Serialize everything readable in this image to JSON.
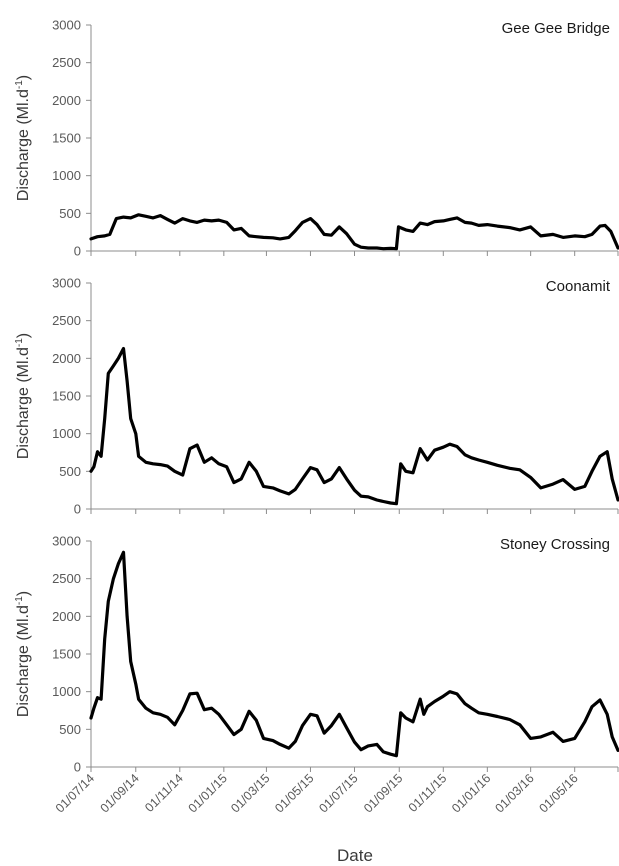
{
  "chart_data": [
    {
      "type": "line",
      "title": "Gee Gee Bridge",
      "ylabel": "Discharge (Ml.d",
      "ylabel_sup": "-1",
      "ylabel_close": ")",
      "ylim": [
        0,
        3000
      ],
      "yticks": [
        0,
        500,
        1000,
        1500,
        2000,
        2500,
        3000
      ],
      "series": [
        {
          "x": [
            "2014-07-01",
            "2014-07-10",
            "2014-07-20",
            "2014-07-27",
            "2014-08-05",
            "2014-08-15",
            "2014-08-25",
            "2014-09-05",
            "2014-09-15",
            "2014-09-25",
            "2014-10-05",
            "2014-10-15",
            "2014-10-25",
            "2014-11-05",
            "2014-11-15",
            "2014-11-25",
            "2014-12-05",
            "2014-12-15",
            "2014-12-25",
            "2015-01-05",
            "2015-01-15",
            "2015-01-25",
            "2015-02-05",
            "2015-02-15",
            "2015-02-25",
            "2015-03-10",
            "2015-03-20",
            "2015-04-01",
            "2015-04-10",
            "2015-04-20",
            "2015-05-01",
            "2015-05-10",
            "2015-05-20",
            "2015-05-30",
            "2015-06-10",
            "2015-06-20",
            "2015-07-01",
            "2015-07-10",
            "2015-07-20",
            "2015-08-01",
            "2015-08-10",
            "2015-08-20",
            "2015-08-28",
            "2015-08-31",
            "2015-09-10",
            "2015-09-20",
            "2015-09-30",
            "2015-10-10",
            "2015-10-20",
            "2015-11-01",
            "2015-11-10",
            "2015-11-20",
            "2015-12-01",
            "2015-12-10",
            "2015-12-20",
            "2016-01-01",
            "2016-01-15",
            "2016-02-01",
            "2016-02-15",
            "2016-03-01",
            "2016-03-15",
            "2016-04-01",
            "2016-04-15",
            "2016-05-01",
            "2016-05-15",
            "2016-05-25",
            "2016-06-05",
            "2016-06-12",
            "2016-06-20",
            "2016-06-30"
          ],
          "y": [
            160,
            190,
            200,
            220,
            430,
            450,
            440,
            480,
            460,
            440,
            470,
            420,
            370,
            430,
            400,
            380,
            410,
            400,
            410,
            380,
            280,
            300,
            200,
            190,
            180,
            175,
            160,
            180,
            270,
            380,
            430,
            350,
            220,
            210,
            320,
            230,
            90,
            50,
            40,
            40,
            30,
            35,
            30,
            320,
            280,
            260,
            370,
            350,
            390,
            400,
            420,
            440,
            380,
            370,
            340,
            350,
            330,
            310,
            280,
            320,
            200,
            220,
            180,
            200,
            190,
            220,
            330,
            340,
            260,
            40
          ]
        }
      ]
    },
    {
      "type": "line",
      "title": "Coonamit",
      "ylabel": "Discharge (Ml.d",
      "ylabel_sup": "-1",
      "ylabel_close": ")",
      "ylim": [
        0,
        3000
      ],
      "yticks": [
        0,
        500,
        1000,
        1500,
        2000,
        2500,
        3000
      ],
      "series": [
        {
          "x": [
            "2014-07-01",
            "2014-07-05",
            "2014-07-10",
            "2014-07-15",
            "2014-07-20",
            "2014-07-25",
            "2014-08-01",
            "2014-08-08",
            "2014-08-15",
            "2014-08-20",
            "2014-08-25",
            "2014-09-01",
            "2014-09-05",
            "2014-09-15",
            "2014-09-25",
            "2014-10-05",
            "2014-10-15",
            "2014-10-25",
            "2014-11-05",
            "2014-11-15",
            "2014-11-25",
            "2014-12-05",
            "2014-12-15",
            "2014-12-25",
            "2015-01-05",
            "2015-01-15",
            "2015-01-25",
            "2015-02-05",
            "2015-02-15",
            "2015-02-25",
            "2015-03-10",
            "2015-03-20",
            "2015-04-01",
            "2015-04-10",
            "2015-04-20",
            "2015-05-01",
            "2015-05-10",
            "2015-05-20",
            "2015-05-30",
            "2015-06-10",
            "2015-06-20",
            "2015-07-01",
            "2015-07-10",
            "2015-07-20",
            "2015-08-01",
            "2015-08-10",
            "2015-08-20",
            "2015-08-28",
            "2015-09-03",
            "2015-09-10",
            "2015-09-20",
            "2015-09-30",
            "2015-10-10",
            "2015-10-20",
            "2015-11-01",
            "2015-11-10",
            "2015-11-20",
            "2015-12-01",
            "2015-12-10",
            "2015-12-20",
            "2016-01-01",
            "2016-01-15",
            "2016-02-01",
            "2016-02-15",
            "2016-03-01",
            "2016-03-15",
            "2016-04-01",
            "2016-04-15",
            "2016-05-01",
            "2016-05-15",
            "2016-05-25",
            "2016-06-05",
            "2016-06-15",
            "2016-06-22",
            "2016-06-30"
          ],
          "y": [
            500,
            560,
            760,
            700,
            1200,
            1800,
            1900,
            2000,
            2130,
            1700,
            1200,
            1000,
            700,
            620,
            600,
            590,
            570,
            500,
            450,
            800,
            850,
            620,
            680,
            600,
            560,
            350,
            400,
            620,
            500,
            300,
            280,
            240,
            200,
            260,
            400,
            550,
            520,
            350,
            400,
            550,
            400,
            250,
            170,
            160,
            120,
            100,
            80,
            70,
            600,
            500,
            480,
            800,
            650,
            780,
            820,
            860,
            830,
            720,
            680,
            650,
            620,
            580,
            540,
            520,
            420,
            280,
            330,
            390,
            260,
            300,
            500,
            700,
            760,
            400,
            120
          ]
        }
      ]
    },
    {
      "type": "line",
      "title": "Stoney Crossing",
      "ylabel": "Discharge (Ml.d",
      "ylabel_sup": "-1",
      "ylabel_close": ")",
      "xlabel": "Date",
      "ylim": [
        0,
        3000
      ],
      "yticks": [
        0,
        500,
        1000,
        1500,
        2000,
        2500,
        3000
      ],
      "xticks": [
        "01/07/14",
        "01/09/14",
        "01/11/14",
        "01/01/15",
        "01/03/15",
        "01/05/15",
        "01/07/15",
        "01/09/15",
        "01/11/15",
        "01/01/16",
        "01/03/16",
        "01/05/16"
      ],
      "xtick_dates": [
        "2014-07-01",
        "2014-09-01",
        "2014-11-01",
        "2015-01-01",
        "2015-03-01",
        "2015-05-01",
        "2015-07-01",
        "2015-09-01",
        "2015-11-01",
        "2016-01-01",
        "2016-03-01",
        "2016-05-01"
      ],
      "xlim": [
        "2014-07-01",
        "2016-06-30"
      ],
      "series": [
        {
          "x": [
            "2014-07-01",
            "2014-07-05",
            "2014-07-10",
            "2014-07-15",
            "2014-07-20",
            "2014-07-25",
            "2014-08-01",
            "2014-08-08",
            "2014-08-15",
            "2014-08-20",
            "2014-08-25",
            "2014-09-01",
            "2014-09-05",
            "2014-09-15",
            "2014-09-25",
            "2014-10-05",
            "2014-10-15",
            "2014-10-25",
            "2014-11-05",
            "2014-11-15",
            "2014-11-25",
            "2014-12-05",
            "2014-12-15",
            "2014-12-25",
            "2015-01-05",
            "2015-01-15",
            "2015-01-25",
            "2015-02-05",
            "2015-02-15",
            "2015-02-25",
            "2015-03-10",
            "2015-03-20",
            "2015-04-01",
            "2015-04-10",
            "2015-04-20",
            "2015-05-01",
            "2015-05-10",
            "2015-05-20",
            "2015-05-30",
            "2015-06-10",
            "2015-06-20",
            "2015-07-01",
            "2015-07-10",
            "2015-07-20",
            "2015-08-01",
            "2015-08-10",
            "2015-08-20",
            "2015-08-28",
            "2015-09-03",
            "2015-09-10",
            "2015-09-20",
            "2015-09-30",
            "2015-10-05",
            "2015-10-10",
            "2015-10-20",
            "2015-11-01",
            "2015-11-10",
            "2015-11-20",
            "2015-12-01",
            "2015-12-10",
            "2015-12-20",
            "2016-01-01",
            "2016-01-15",
            "2016-02-01",
            "2016-02-15",
            "2016-03-01",
            "2016-03-15",
            "2016-04-01",
            "2016-04-15",
            "2016-05-01",
            "2016-05-15",
            "2016-05-25",
            "2016-06-05",
            "2016-06-15",
            "2016-06-22",
            "2016-06-30"
          ],
          "y": [
            650,
            780,
            920,
            900,
            1700,
            2200,
            2500,
            2700,
            2850,
            2000,
            1400,
            1100,
            900,
            780,
            720,
            700,
            660,
            560,
            750,
            970,
            980,
            760,
            780,
            700,
            560,
            430,
            500,
            740,
            620,
            380,
            350,
            300,
            250,
            340,
            550,
            700,
            680,
            450,
            550,
            700,
            520,
            330,
            230,
            280,
            300,
            200,
            170,
            150,
            720,
            650,
            600,
            900,
            700,
            800,
            870,
            940,
            1000,
            970,
            840,
            780,
            720,
            700,
            670,
            630,
            560,
            380,
            400,
            460,
            340,
            380,
            600,
            800,
            890,
            700,
            400,
            220
          ]
        }
      ]
    }
  ]
}
